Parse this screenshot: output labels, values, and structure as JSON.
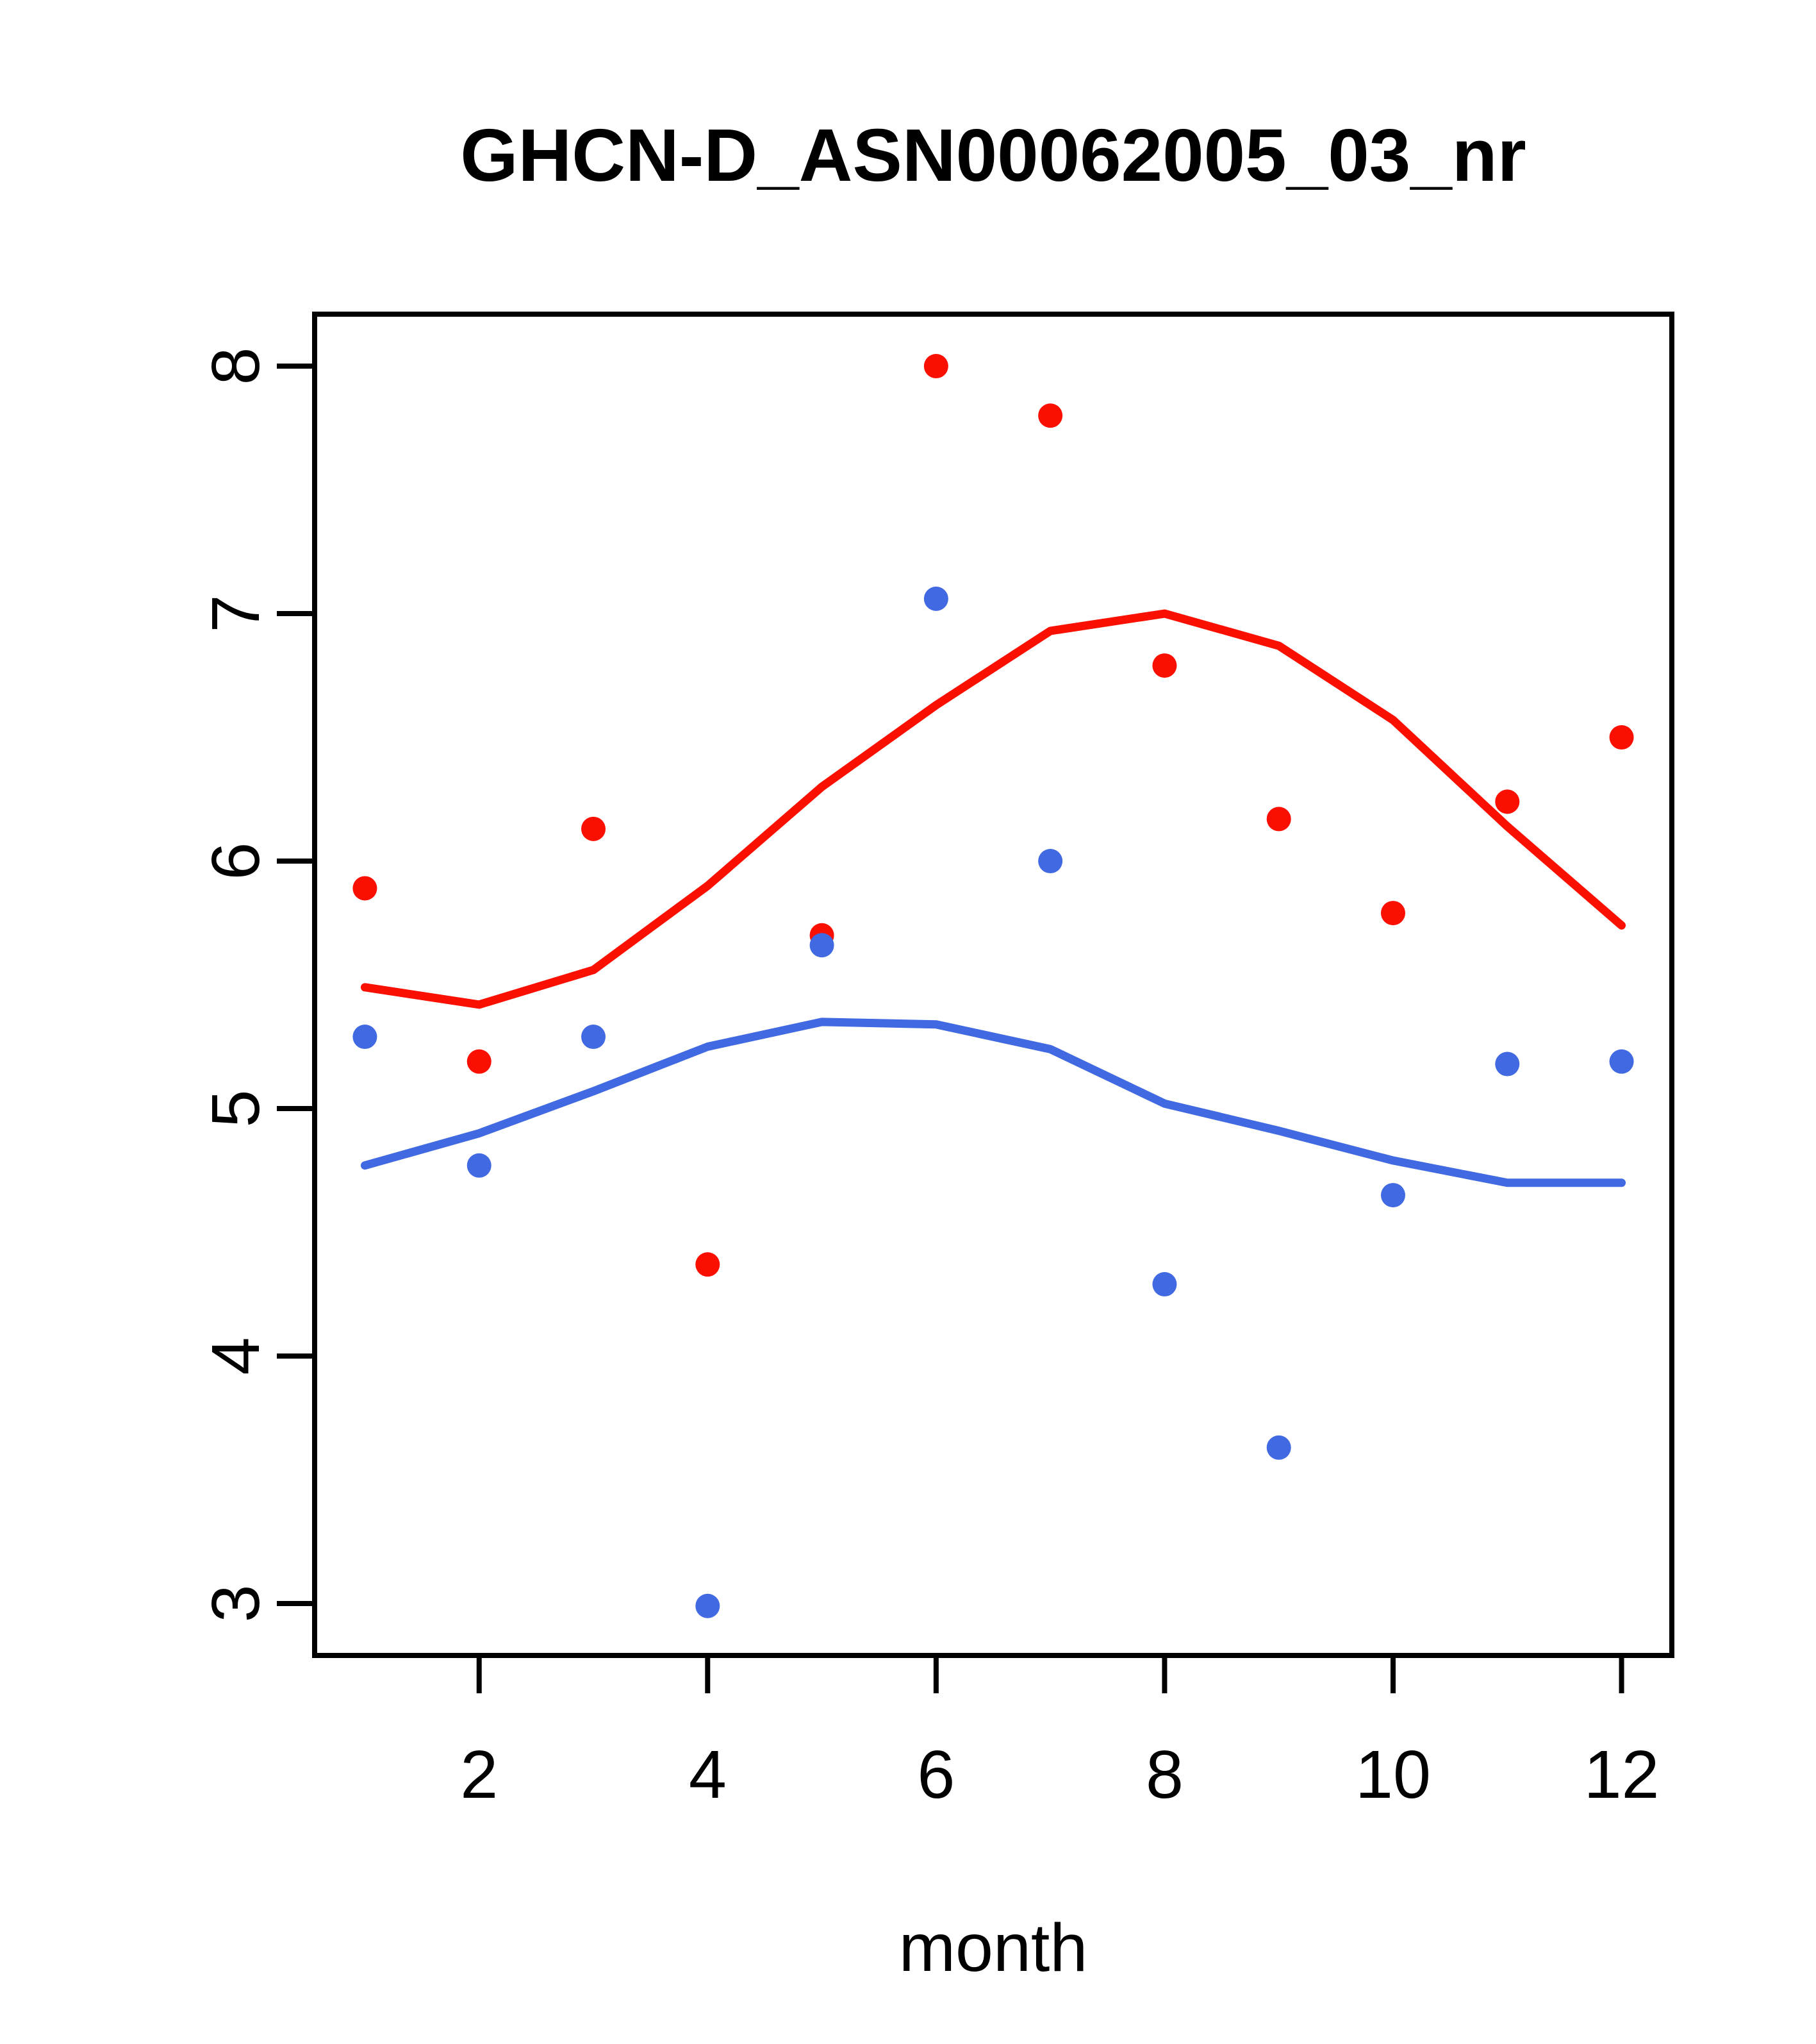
{
  "chart_data": {
    "type": "scatter",
    "title": "GHCN-D_ASN00062005_03_nr",
    "xlabel": "month",
    "ylabel": "",
    "x": [
      1,
      2,
      3,
      4,
      5,
      6,
      7,
      8,
      9,
      10,
      11,
      12
    ],
    "xticks": [
      2,
      4,
      6,
      8,
      10,
      12
    ],
    "yticks": [
      3,
      4,
      5,
      6,
      7,
      8
    ],
    "xlim": [
      0.56,
      12.44
    ],
    "ylim": [
      2.79,
      8.21
    ],
    "grid": false,
    "legend": "none",
    "colors": {
      "red": "#fa0f00",
      "blue": "#4169e1",
      "axis": "#000000",
      "background": "#ffffff"
    },
    "series": [
      {
        "name": "red-points",
        "type": "points",
        "color": "#fa0f00",
        "values": [
          5.89,
          5.19,
          6.13,
          4.37,
          5.7,
          8.0,
          7.8,
          6.79,
          6.17,
          5.79,
          6.24,
          6.5
        ]
      },
      {
        "name": "red-smooth-line",
        "type": "line",
        "color": "#fa0f00",
        "values": [
          5.49,
          5.42,
          5.56,
          5.9,
          6.3,
          6.63,
          6.93,
          7.0,
          6.87,
          6.57,
          6.14,
          5.74
        ]
      },
      {
        "name": "blue-smooth-line",
        "type": "line",
        "color": "#4169e1",
        "values": [
          4.77,
          4.9,
          5.07,
          5.25,
          5.35,
          5.34,
          5.24,
          5.02,
          4.91,
          4.79,
          4.7,
          4.7
        ]
      },
      {
        "name": "blue-points",
        "type": "points",
        "color": "#4169e1",
        "values": [
          5.29,
          4.77,
          5.29,
          2.99,
          5.66,
          7.06,
          6.0,
          4.29,
          3.63,
          4.65,
          5.18,
          5.19
        ]
      }
    ]
  }
}
